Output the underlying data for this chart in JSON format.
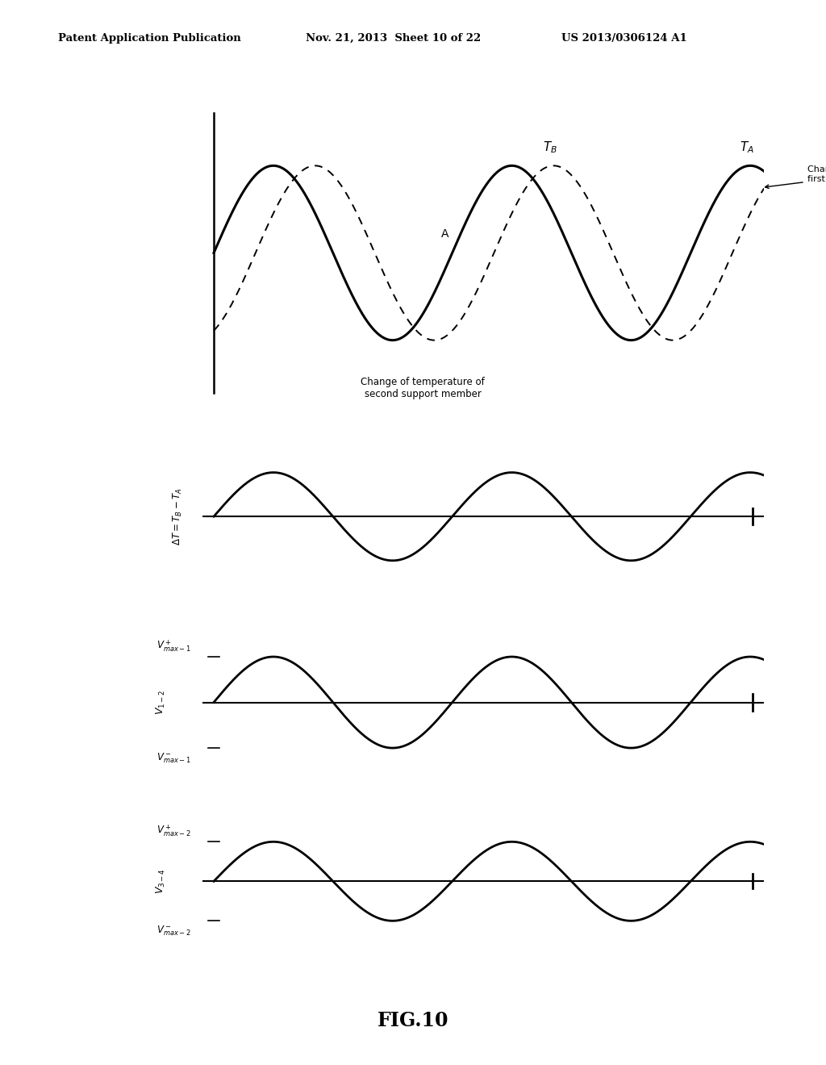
{
  "bg_color": "#ffffff",
  "header_left": "Patent Application Publication",
  "header_mid": "Nov. 21, 2013  Sheet 10 of 22",
  "header_right": "US 2013/0306124 A1",
  "figure_label": "FIG.10",
  "top_panel": {
    "solid_amp": 1.0,
    "solid_freq": 1.0,
    "solid_phase": 0.0,
    "solid_lw": 2.2,
    "dashed_amp": 1.0,
    "dashed_freq": 1.0,
    "dashed_phase": -1.1,
    "dashed_lw": 1.4,
    "xmax": 14.5,
    "ylim_lo": -1.8,
    "ylim_hi": 1.8,
    "color": "#000000"
  },
  "panel2": {
    "amp": 0.65,
    "freq": 1.0,
    "phase": 0.0,
    "lw": 2.0,
    "xmax": 14.5,
    "ylim_lo": -1.1,
    "ylim_hi": 1.1,
    "color": "#000000"
  },
  "panel3": {
    "amp": 0.65,
    "freq": 1.0,
    "phase": 0.0,
    "lw": 2.0,
    "xmax": 14.5,
    "ylim_lo": -1.1,
    "ylim_hi": 1.1,
    "color": "#000000"
  },
  "panel4": {
    "amp": 0.55,
    "freq": 1.0,
    "phase": 0.0,
    "lw": 2.0,
    "xmax": 14.5,
    "ylim_lo": -1.0,
    "ylim_hi": 1.0,
    "color": "#000000"
  }
}
